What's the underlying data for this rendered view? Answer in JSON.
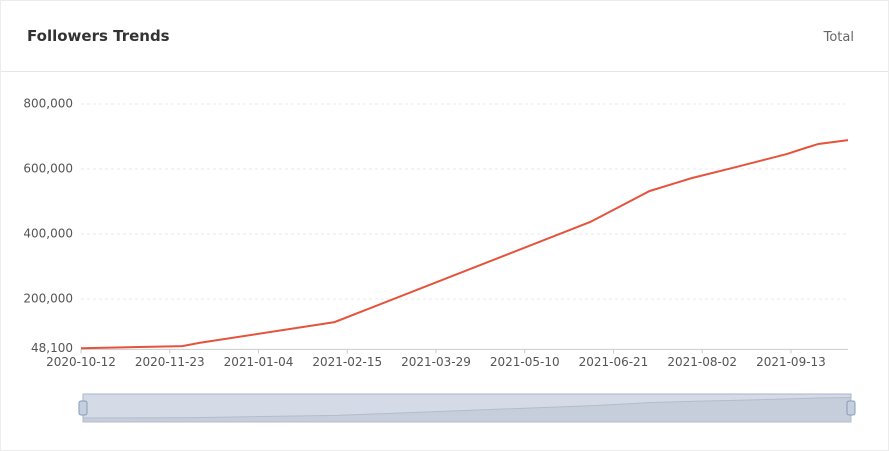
{
  "header": {
    "title": "Followers Trends",
    "toggle": "Total"
  },
  "chart_data": {
    "type": "line",
    "x": [
      "2020-10-12",
      "2020-11-29",
      "2020-12-07",
      "2021-02-09",
      "2021-06-10",
      "2021-07-08",
      "2021-07-19",
      "2021-07-28",
      "2021-08-18",
      "2021-09-11",
      "2021-09-20",
      "2021-09-26",
      "2021-10-10"
    ],
    "series": [
      {
        "name": "Followers",
        "color": "#e5533d",
        "values": [
          48500,
          55000,
          65000,
          129000,
          437000,
          532000,
          554000,
          572000,
          606000,
          646000,
          665000,
          677000,
          689000
        ]
      }
    ],
    "xlim": [
      "2020-10-12",
      "2021-10-10"
    ],
    "xticks": [
      "2020-10-12",
      "2020-11-23",
      "2021-01-04",
      "2021-02-15",
      "2021-03-29",
      "2021-05-10",
      "2021-06-21",
      "2021-08-02",
      "2021-09-13"
    ],
    "ylim": [
      48100,
      800000
    ],
    "yticks": [
      {
        "value": 48100,
        "label": "48,100"
      },
      {
        "value": 200000,
        "label": "200,000"
      },
      {
        "value": 400000,
        "label": "400,000"
      },
      {
        "value": 600000,
        "label": "600,000"
      },
      {
        "value": 800000,
        "label": "800,000"
      }
    ],
    "grid": true
  }
}
